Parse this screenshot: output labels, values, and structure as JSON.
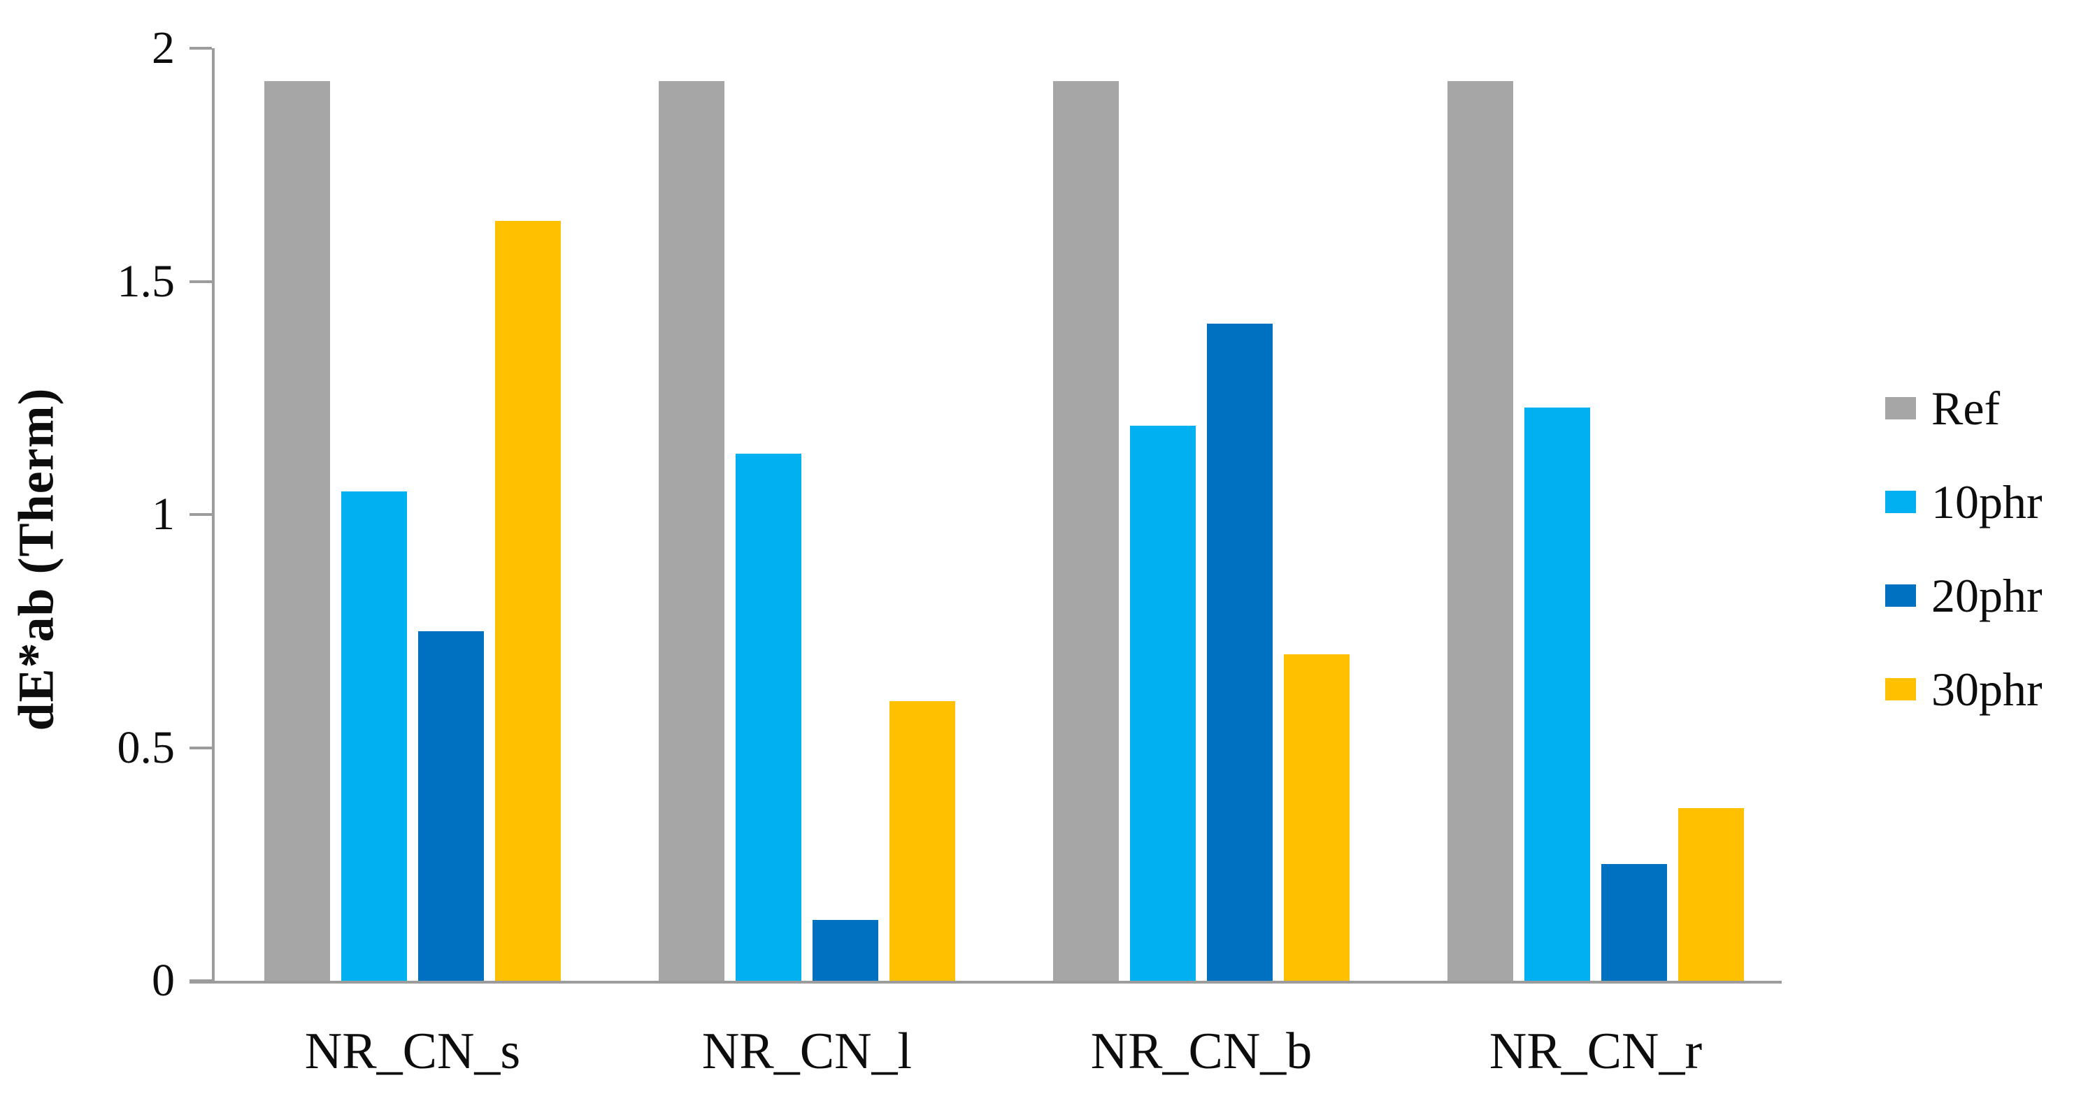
{
  "figure": {
    "background": "#ffffff",
    "axis_color": "#9c9c9c",
    "text_color": "#0d0d0d"
  },
  "chart_data": {
    "type": "bar",
    "title": "",
    "xlabel": "",
    "ylabel": "dE*ab (Therm)",
    "categories": [
      "NR_CN_s",
      "NR_CN_l",
      "NR_CN_b",
      "NR_CN_r"
    ],
    "series": [
      {
        "name": "Ref",
        "color": "#A6A6A6",
        "values": [
          1.93,
          1.93,
          1.93,
          1.93
        ]
      },
      {
        "name": "10phr",
        "color": "#00B0F0",
        "values": [
          1.05,
          1.13,
          1.19,
          1.23
        ]
      },
      {
        "name": "20phr",
        "color": "#0070C0",
        "values": [
          0.75,
          0.13,
          1.41,
          0.25
        ]
      },
      {
        "name": "30phr",
        "color": "#FFC000",
        "values": [
          1.63,
          0.6,
          0.7,
          0.37
        ]
      }
    ],
    "ylim": [
      0,
      2
    ],
    "yticks": [
      2,
      1.5,
      1,
      0.5,
      0
    ],
    "ytick_labels": [
      "2",
      "1.5",
      "1",
      "0.5",
      "0"
    ],
    "grid": false,
    "legend_position": "right",
    "legend_entries": [
      "Ref",
      "10phr",
      "20phr",
      "30phr"
    ]
  }
}
